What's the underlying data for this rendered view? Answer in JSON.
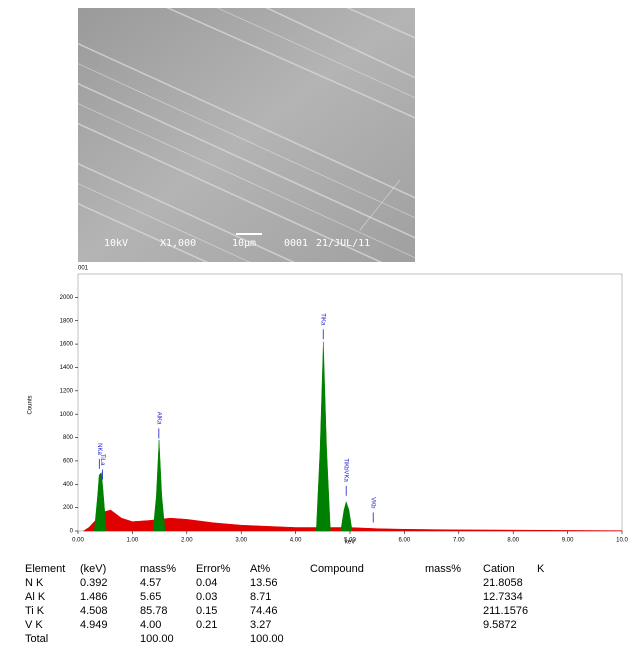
{
  "image": {
    "caption": [
      "10kV",
      "X1,000",
      "10μm",
      "0001",
      "21/JUL/11"
    ]
  },
  "chart_data": {
    "type": "area",
    "title": "001",
    "x_label": "keV",
    "y_label": "Counts",
    "xlim": [
      0,
      10
    ],
    "ylim": [
      0,
      2200
    ],
    "xticks": [
      {
        "value": 0,
        "label": "0.00"
      },
      {
        "value": 1,
        "label": "1.00"
      },
      {
        "value": 2,
        "label": "2.00"
      },
      {
        "value": 3,
        "label": "3.00"
      },
      {
        "value": 4,
        "label": "4.00"
      },
      {
        "value": 5,
        "label": "5.00"
      },
      {
        "value": 6,
        "label": "6.00"
      },
      {
        "value": 7,
        "label": "7.00"
      },
      {
        "value": 8,
        "label": "8.00"
      },
      {
        "value": 9,
        "label": "9.00"
      },
      {
        "value": 10,
        "label": "10.0"
      }
    ],
    "yticks": [
      0,
      200,
      400,
      600,
      800,
      1000,
      1200,
      1400,
      1600,
      1800,
      2000
    ],
    "areas": [
      {
        "color": "#e00000",
        "x": [
          0.1,
          0.2,
          0.3,
          0.45,
          0.6,
          0.8,
          1.0,
          1.3,
          1.7,
          2.0,
          2.5,
          3.0,
          3.5,
          4.0,
          4.3,
          5.0,
          5.5,
          6.0,
          7.0,
          8.0,
          9.0,
          10.0
        ],
        "values": [
          0,
          30,
          80,
          160,
          180,
          110,
          80,
          90,
          110,
          100,
          70,
          50,
          40,
          30,
          30,
          30,
          20,
          15,
          10,
          8,
          5,
          3
        ]
      },
      {
        "color": "#008000",
        "x": [
          0.3,
          0.36,
          0.39,
          0.43,
          0.46,
          0.52
        ],
        "values": [
          0,
          300,
          480,
          500,
          350,
          0
        ]
      },
      {
        "color": "#008000",
        "x": [
          1.38,
          1.44,
          1.49,
          1.54,
          1.6
        ],
        "values": [
          0,
          300,
          780,
          300,
          0
        ]
      },
      {
        "color": "#008000",
        "x": [
          4.38,
          4.45,
          4.51,
          4.57,
          4.64
        ],
        "values": [
          0,
          700,
          1620,
          700,
          0
        ]
      },
      {
        "color": "#008000",
        "x": [
          4.83,
          4.89,
          4.93,
          4.98,
          5.04
        ],
        "values": [
          0,
          180,
          250,
          180,
          0
        ]
      }
    ],
    "marker_color": "#1a1acc",
    "markers": [
      {
        "label": "NKa",
        "kev": 0.392
      },
      {
        "label": "TiLa",
        "kev": 0.452
      },
      {
        "label": "AlKa",
        "kev": 1.486
      },
      {
        "label": "TiKa",
        "kev": 4.508
      },
      {
        "label": "TiKbVKa",
        "kev": 4.93
      },
      {
        "label": "VKb",
        "kev": 5.427
      }
    ]
  },
  "table": {
    "header": [
      "Element",
      "(keV)",
      "mass%",
      "Error%",
      "At%",
      "Compound",
      "mass%",
      "Cation",
      "K"
    ],
    "rows": [
      [
        "N K",
        "0.392",
        "4.57",
        "0.04",
        "13.56",
        "21.8058"
      ],
      [
        "Al K",
        "1.486",
        "5.65",
        "0.03",
        "8.71",
        "12.7334"
      ],
      [
        "Ti K",
        "4.508",
        "85.78",
        "0.15",
        "74.46",
        "211.1576"
      ],
      [
        "V K",
        "4.949",
        "4.00",
        "0.21",
        "3.27",
        "9.5872"
      ],
      [
        "Total",
        "100.00",
        "100.00"
      ]
    ]
  }
}
